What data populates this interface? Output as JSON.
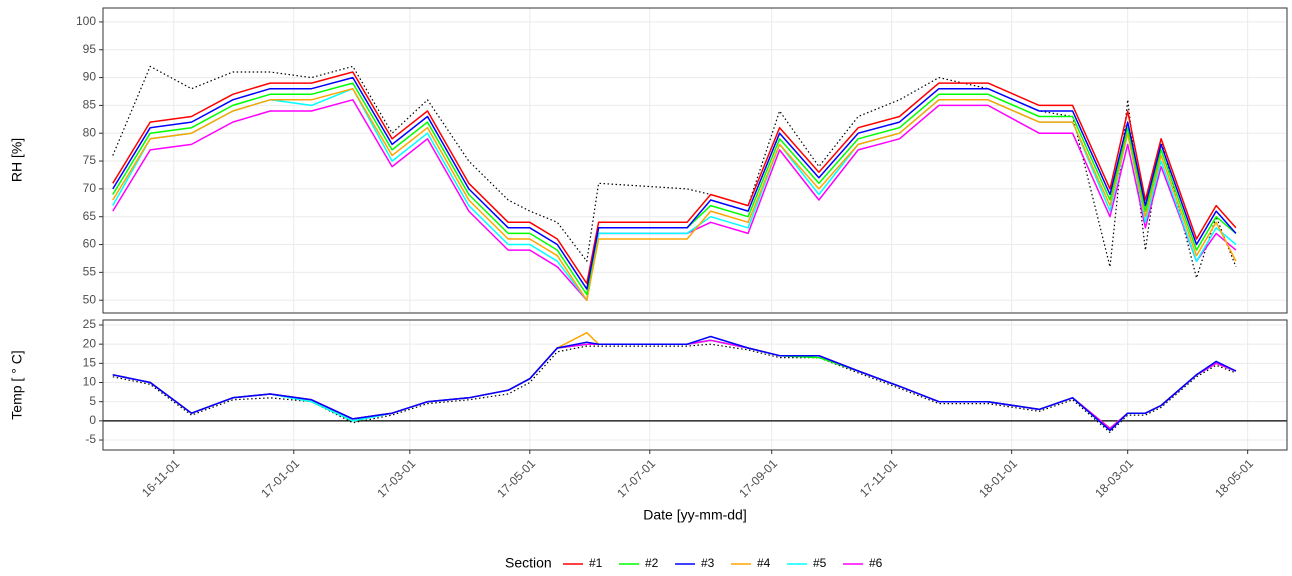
{
  "chart_data": [
    {
      "type": "line",
      "ylabel": "RH [%]",
      "x": [
        "2016-10-01",
        "2016-10-20",
        "2016-11-10",
        "2016-12-01",
        "2016-12-20",
        "2017-01-10",
        "2017-01-31",
        "2017-02-20",
        "2017-03-10",
        "2017-03-31",
        "2017-04-20",
        "2017-05-01",
        "2017-05-15",
        "2017-05-30",
        "2017-06-05",
        "2017-07-20",
        "2017-08-01",
        "2017-08-20",
        "2017-09-05",
        "2017-09-25",
        "2017-10-15",
        "2017-11-05",
        "2017-11-25",
        "2017-12-20",
        "2018-01-15",
        "2018-02-01",
        "2018-02-20",
        "2018-03-01",
        "2018-03-10",
        "2018-03-18",
        "2018-04-05",
        "2018-04-15",
        "2018-04-25"
      ],
      "xlim": [
        "2016-09-26",
        "2018-05-21"
      ],
      "ylim": [
        47.7,
        102.5
      ],
      "yticks": [
        50,
        55,
        60,
        65,
        70,
        75,
        80,
        85,
        90,
        95,
        100
      ],
      "grid": true,
      "series": [
        {
          "color": "#000000",
          "dash": "dotted",
          "values": [
            76,
            92,
            88,
            91,
            91,
            90,
            92,
            80,
            86,
            75,
            68,
            66,
            64,
            57,
            71,
            70,
            69,
            67,
            84,
            74,
            83,
            86,
            90,
            88,
            84,
            83,
            56,
            86,
            59,
            79,
            54,
            65,
            56
          ]
        },
        {
          "color": "#ff00ff",
          "values": [
            66,
            77,
            78,
            82,
            84,
            84,
            86,
            74,
            79,
            66,
            59,
            59,
            56,
            50,
            62,
            62,
            64,
            62,
            77,
            68,
            77,
            79,
            85,
            85,
            80,
            80,
            65,
            78,
            63,
            74,
            57,
            62,
            59
          ]
        },
        {
          "color": "#00ffff",
          "values": [
            67,
            79,
            80,
            84,
            86,
            85,
            88,
            75,
            80,
            67,
            60,
            60,
            57,
            50,
            62,
            62,
            65,
            63,
            78,
            69,
            78,
            80,
            86,
            86,
            82,
            82,
            66,
            80,
            64,
            75,
            57,
            63,
            60
          ]
        },
        {
          "color": "#ffa500",
          "values": [
            68,
            79,
            80,
            84,
            86,
            86,
            88,
            76,
            81,
            68,
            61,
            61,
            58,
            50,
            61,
            61,
            66,
            64,
            78,
            70,
            78,
            80,
            86,
            86,
            82,
            82,
            67,
            80,
            65,
            76,
            58,
            64,
            57
          ]
        },
        {
          "color": "#00ff00",
          "values": [
            69,
            80,
            81,
            85,
            87,
            87,
            89,
            77,
            82,
            69,
            62,
            62,
            59,
            51,
            63,
            63,
            67,
            65,
            79,
            71,
            79,
            81,
            87,
            87,
            83,
            83,
            68,
            81,
            66,
            77,
            59,
            65,
            62
          ]
        },
        {
          "color": "#ff0000",
          "values": [
            71,
            82,
            83,
            87,
            89,
            89,
            91,
            79,
            84,
            71,
            64,
            64,
            61,
            53,
            64,
            64,
            69,
            67,
            81,
            73,
            81,
            83,
            89,
            89,
            85,
            85,
            70,
            84,
            68,
            79,
            61,
            67,
            63
          ]
        },
        {
          "color": "#0000ff",
          "values": [
            70,
            81,
            82,
            86,
            88,
            88,
            90,
            78,
            83,
            70,
            63,
            63,
            60,
            52,
            63,
            63,
            68,
            66,
            80,
            72,
            80,
            82,
            88,
            88,
            84,
            84,
            69,
            82,
            67,
            78,
            60,
            66,
            62
          ]
        }
      ]
    },
    {
      "type": "line",
      "ylabel": "Temp [ ° C]",
      "xlabel": "Date [yy-mm-dd]",
      "legend_title": "Section",
      "x": [
        "2016-10-01",
        "2016-10-20",
        "2016-11-10",
        "2016-12-01",
        "2016-12-20",
        "2017-01-10",
        "2017-01-31",
        "2017-02-20",
        "2017-03-10",
        "2017-03-31",
        "2017-04-20",
        "2017-05-01",
        "2017-05-15",
        "2017-05-30",
        "2017-06-05",
        "2017-07-20",
        "2017-08-01",
        "2017-08-20",
        "2017-09-05",
        "2017-09-25",
        "2017-10-15",
        "2017-11-05",
        "2017-11-25",
        "2017-12-20",
        "2018-01-15",
        "2018-02-01",
        "2018-02-20",
        "2018-03-01",
        "2018-03-10",
        "2018-03-18",
        "2018-04-05",
        "2018-04-15",
        "2018-04-25"
      ],
      "xlim": [
        "2016-09-26",
        "2018-05-21"
      ],
      "xticks": [
        {
          "value": "2016-11-01",
          "label": "16-11-01"
        },
        {
          "value": "2017-01-01",
          "label": "17-01-01"
        },
        {
          "value": "2017-03-01",
          "label": "17-03-01"
        },
        {
          "value": "2017-05-01",
          "label": "17-05-01"
        },
        {
          "value": "2017-07-01",
          "label": "17-07-01"
        },
        {
          "value": "2017-09-01",
          "label": "17-09-01"
        },
        {
          "value": "2017-11-01",
          "label": "17-11-01"
        },
        {
          "value": "2018-01-01",
          "label": "18-01-01"
        },
        {
          "value": "2018-03-01",
          "label": "18-03-01"
        },
        {
          "value": "2018-05-01",
          "label": "18-05-01"
        }
      ],
      "ylim": [
        -7.6,
        26.3
      ],
      "yticks": [
        -5,
        0,
        5,
        10,
        15,
        20,
        25
      ],
      "grid": true,
      "hline": 0,
      "series": [
        {
          "color": "#000000",
          "dash": "dotted",
          "values": [
            11.5,
            9.5,
            1.5,
            5.5,
            6,
            5,
            -0.5,
            1.5,
            4.5,
            5.5,
            7,
            10,
            18,
            19.5,
            19.5,
            19.5,
            20,
            18.5,
            16.5,
            16.5,
            12.5,
            8.5,
            4.5,
            4.5,
            2.5,
            5.5,
            -3,
            1.5,
            1.5,
            3.5,
            11.5,
            14.5,
            12.5
          ]
        },
        {
          "name": "#1",
          "color": "#ff0000",
          "values": [
            12,
            10,
            2,
            6,
            7,
            5.5,
            0.5,
            2,
            5,
            6,
            8,
            11,
            19,
            20,
            20,
            20,
            21,
            19,
            17,
            17,
            13,
            9,
            5,
            5,
            3,
            6,
            -2,
            2,
            2,
            4,
            12,
            15,
            13
          ]
        },
        {
          "name": "#2",
          "color": "#00ff00",
          "values": [
            12,
            10,
            2,
            6,
            7,
            5,
            0,
            2,
            5,
            6,
            8,
            11,
            19,
            20,
            20,
            20,
            21,
            19,
            17,
            16.5,
            13,
            9,
            5,
            5,
            3,
            6,
            -2,
            2,
            2,
            4,
            12,
            15,
            13
          ]
        },
        {
          "name": "#4",
          "color": "#ffa500",
          "values": [
            12,
            10,
            2,
            6,
            7,
            5.5,
            0.5,
            2,
            5,
            6,
            8,
            11,
            19,
            23,
            20,
            20,
            21,
            19,
            17,
            17,
            13,
            9,
            5,
            5,
            3,
            6,
            -2,
            2,
            2,
            4,
            12,
            15,
            13
          ]
        },
        {
          "name": "#5",
          "color": "#00ffff",
          "values": [
            12,
            10,
            2,
            6,
            7,
            5,
            0,
            2,
            5,
            6,
            8,
            11,
            19,
            20,
            20,
            20,
            21,
            19,
            17,
            17,
            13,
            9,
            5,
            5,
            3,
            6,
            -2.5,
            2,
            2,
            4,
            12,
            15,
            13
          ]
        },
        {
          "name": "#6",
          "color": "#ff00ff",
          "values": [
            12,
            10,
            2,
            6,
            7,
            5.5,
            0.5,
            2,
            5,
            6,
            8,
            11,
            19,
            20,
            20,
            20,
            21,
            19,
            17,
            17,
            13,
            9,
            5,
            5,
            3,
            6,
            -2,
            2,
            2,
            4,
            12,
            15,
            13
          ]
        },
        {
          "name": "#3",
          "color": "#0000ff",
          "values": [
            12,
            10,
            2,
            6,
            7,
            5.5,
            0.5,
            2,
            5,
            6,
            8,
            11,
            19,
            20.5,
            20,
            20,
            22,
            19,
            17,
            17,
            13,
            9,
            5,
            5,
            3,
            6,
            -2.5,
            2,
            2,
            4,
            12,
            15.5,
            13
          ]
        }
      ]
    }
  ]
}
